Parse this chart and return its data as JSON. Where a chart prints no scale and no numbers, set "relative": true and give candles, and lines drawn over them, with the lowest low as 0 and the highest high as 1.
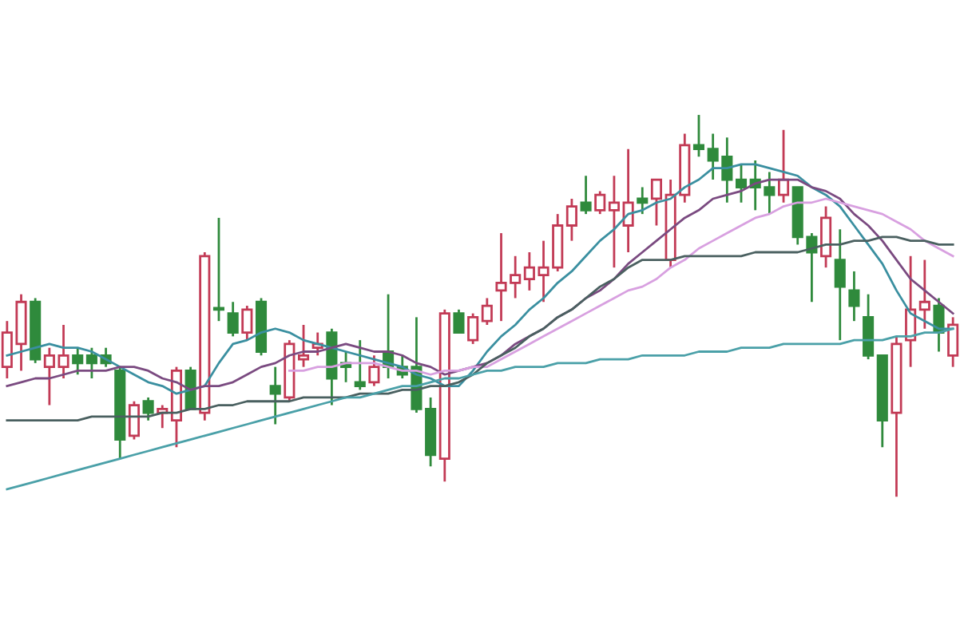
{
  "chart_data": {
    "type": "candlestick",
    "relative": true,
    "categories": [
      null,
      null,
      null,
      null,
      null,
      null,
      null,
      null,
      null,
      null,
      null,
      null,
      null,
      null,
      null,
      null,
      null,
      null,
      null,
      null,
      null,
      null,
      null,
      null,
      null,
      null,
      null,
      null,
      null,
      null,
      null,
      null,
      null,
      null,
      null,
      null,
      null,
      null,
      null,
      null,
      null,
      null,
      null,
      null,
      null,
      null,
      null,
      null,
      null,
      null,
      null,
      null,
      null,
      null,
      null,
      null,
      null,
      null,
      null,
      null,
      null,
      null,
      null,
      null,
      null,
      null,
      null,
      null
    ],
    "ohlc": [
      [
        0.34,
        0.46,
        0.31,
        0.43
      ],
      [
        0.4,
        0.53,
        0.33,
        0.51
      ],
      [
        0.51,
        0.52,
        0.35,
        0.36
      ],
      [
        0.34,
        0.39,
        0.24,
        0.37
      ],
      [
        0.34,
        0.45,
        0.31,
        0.37
      ],
      [
        0.37,
        0.39,
        0.32,
        0.35
      ],
      [
        0.37,
        0.39,
        0.31,
        0.35
      ],
      [
        0.37,
        0.39,
        0.34,
        0.35
      ],
      [
        0.33,
        0.34,
        0.1,
        0.15
      ],
      [
        0.16,
        0.25,
        0.15,
        0.24
      ],
      [
        0.25,
        0.26,
        0.2,
        0.22
      ],
      [
        0.22,
        0.24,
        0.18,
        0.23
      ],
      [
        0.2,
        0.34,
        0.13,
        0.33
      ],
      [
        0.33,
        0.34,
        0.23,
        0.23
      ],
      [
        0.22,
        0.64,
        0.2,
        0.63
      ],
      [
        0.49,
        0.73,
        0.46,
        0.49
      ],
      [
        0.48,
        0.51,
        0.42,
        0.43
      ],
      [
        0.43,
        0.5,
        0.41,
        0.49
      ],
      [
        0.51,
        0.52,
        0.37,
        0.38
      ],
      [
        0.29,
        0.34,
        0.19,
        0.27
      ],
      [
        0.26,
        0.41,
        0.25,
        0.4
      ],
      [
        0.36,
        0.45,
        0.34,
        0.37
      ],
      [
        0.39,
        0.43,
        0.37,
        0.4
      ],
      [
        0.43,
        0.44,
        0.24,
        0.31
      ],
      [
        0.35,
        0.38,
        0.3,
        0.34
      ],
      [
        0.3,
        0.41,
        0.28,
        0.29
      ],
      [
        0.3,
        0.37,
        0.29,
        0.34
      ],
      [
        0.38,
        0.53,
        0.31,
        0.34
      ],
      [
        0.34,
        0.37,
        0.31,
        0.32
      ],
      [
        0.34,
        0.47,
        0.22,
        0.23
      ],
      [
        0.23,
        0.26,
        0.08,
        0.11
      ],
      [
        0.1,
        0.49,
        0.04,
        0.48
      ],
      [
        0.48,
        0.49,
        0.43,
        0.43
      ],
      [
        0.41,
        0.48,
        0.4,
        0.47
      ],
      [
        0.46,
        0.52,
        0.45,
        0.5
      ],
      [
        0.54,
        0.69,
        0.46,
        0.56
      ],
      [
        0.56,
        0.63,
        0.52,
        0.58
      ],
      [
        0.57,
        0.64,
        0.54,
        0.6
      ],
      [
        0.58,
        0.67,
        0.51,
        0.6
      ],
      [
        0.6,
        0.74,
        0.59,
        0.71
      ],
      [
        0.71,
        0.78,
        0.67,
        0.76
      ],
      [
        0.77,
        0.84,
        0.74,
        0.75
      ],
      [
        0.75,
        0.8,
        0.74,
        0.79
      ],
      [
        0.75,
        0.84,
        0.6,
        0.77
      ],
      [
        0.71,
        0.91,
        0.64,
        0.77
      ],
      [
        0.78,
        0.81,
        0.74,
        0.77
      ],
      [
        0.78,
        0.83,
        0.71,
        0.83
      ],
      [
        0.62,
        0.83,
        0.6,
        0.79
      ],
      [
        0.79,
        0.95,
        0.77,
        0.92
      ],
      [
        0.92,
        1.0,
        0.89,
        0.91
      ],
      [
        0.91,
        0.95,
        0.83,
        0.88
      ],
      [
        0.89,
        0.94,
        0.77,
        0.83
      ],
      [
        0.83,
        0.87,
        0.77,
        0.81
      ],
      [
        0.83,
        0.88,
        0.75,
        0.81
      ],
      [
        0.81,
        0.85,
        0.74,
        0.79
      ],
      [
        0.79,
        0.96,
        0.77,
        0.83
      ],
      [
        0.81,
        0.81,
        0.66,
        0.68
      ],
      [
        0.68,
        0.69,
        0.51,
        0.64
      ],
      [
        0.63,
        0.76,
        0.6,
        0.73
      ],
      [
        0.62,
        0.7,
        0.41,
        0.55
      ],
      [
        0.54,
        0.59,
        0.46,
        0.5
      ],
      [
        0.47,
        0.53,
        0.36,
        0.37
      ],
      [
        0.37,
        0.37,
        0.13,
        0.2
      ],
      [
        0.22,
        0.42,
        0.0,
        0.4
      ],
      [
        0.41,
        0.63,
        0.34,
        0.49
      ],
      [
        0.49,
        0.62,
        0.44,
        0.51
      ],
      [
        0.5,
        0.52,
        0.38,
        0.43
      ],
      [
        0.37,
        0.47,
        0.34,
        0.45
      ]
    ],
    "colors": [
      "#c23a55",
      "#c23a55",
      "#2f8a3c",
      "#c23a55",
      "#c23a55",
      "#2f8a3c",
      "#2f8a3c",
      "#2f8a3c",
      "#2f8a3c",
      "#c23a55",
      "#2f8a3c",
      "#c23a55",
      "#c23a55",
      "#2f8a3c",
      "#c23a55",
      "#2f8a3c",
      "#2f8a3c",
      "#c23a55",
      "#2f8a3c",
      "#2f8a3c",
      "#c23a55",
      "#c23a55",
      "#c23a55",
      "#2f8a3c",
      "#2f8a3c",
      "#2f8a3c",
      "#c23a55",
      "#2f8a3c",
      "#2f8a3c",
      "#2f8a3c",
      "#2f8a3c",
      "#c23a55",
      "#2f8a3c",
      "#c23a55",
      "#c23a55",
      "#c23a55",
      "#c23a55",
      "#c23a55",
      "#c23a55",
      "#c23a55",
      "#c23a55",
      "#2f8a3c",
      "#c23a55",
      "#c23a55",
      "#c23a55",
      "#2f8a3c",
      "#c23a55",
      "#c23a55",
      "#c23a55",
      "#2f8a3c",
      "#2f8a3c",
      "#2f8a3c",
      "#2f8a3c",
      "#2f8a3c",
      "#2f8a3c",
      "#c23a55",
      "#2f8a3c",
      "#2f8a3c",
      "#c23a55",
      "#2f8a3c",
      "#2f8a3c",
      "#2f8a3c",
      "#2f8a3c",
      "#c23a55",
      "#c23a55",
      "#c23a55",
      "#2f8a3c",
      "#c23a55"
    ],
    "series": [
      {
        "type": "line",
        "color": "#3a8fa0",
        "values": [
          0.37,
          0.38,
          0.39,
          0.4,
          0.39,
          0.39,
          0.38,
          0.36,
          0.34,
          0.32,
          0.3,
          0.29,
          0.27,
          0.28,
          0.29,
          0.35,
          0.4,
          0.41,
          0.43,
          0.44,
          0.43,
          0.41,
          0.4,
          0.39,
          0.38,
          0.37,
          0.36,
          0.35,
          0.34,
          0.32,
          0.31,
          0.29,
          0.29,
          0.33,
          0.38,
          0.42,
          0.45,
          0.49,
          0.52,
          0.56,
          0.59,
          0.63,
          0.67,
          0.7,
          0.74,
          0.75,
          0.77,
          0.78,
          0.81,
          0.83,
          0.86,
          0.86,
          0.87,
          0.87,
          0.86,
          0.85,
          0.84,
          0.81,
          0.79,
          0.76,
          0.71,
          0.66,
          0.61,
          0.54,
          0.48,
          0.46,
          0.44,
          0.44
        ]
      },
      {
        "type": "line",
        "color": "#7a4a80",
        "values": [
          0.29,
          0.3,
          0.31,
          0.31,
          0.32,
          0.33,
          0.33,
          0.33,
          0.34,
          0.34,
          0.33,
          0.31,
          0.3,
          0.28,
          0.29,
          0.29,
          0.3,
          0.32,
          0.34,
          0.35,
          0.37,
          0.38,
          0.38,
          0.39,
          0.4,
          0.39,
          0.38,
          0.38,
          0.37,
          0.35,
          0.34,
          0.32,
          0.33,
          0.34,
          0.35,
          0.37,
          0.4,
          0.42,
          0.44,
          0.47,
          0.49,
          0.52,
          0.54,
          0.57,
          0.61,
          0.64,
          0.67,
          0.7,
          0.73,
          0.75,
          0.78,
          0.79,
          0.8,
          0.82,
          0.83,
          0.83,
          0.83,
          0.81,
          0.8,
          0.78,
          0.74,
          0.71,
          0.67,
          0.62,
          0.57,
          0.54,
          0.51,
          0.48
        ]
      },
      {
        "type": "line",
        "color": "#d8a0e0",
        "values": [
          null,
          null,
          null,
          null,
          null,
          null,
          null,
          null,
          null,
          null,
          null,
          null,
          null,
          null,
          null,
          null,
          null,
          null,
          null,
          null,
          0.33,
          0.33,
          0.34,
          0.34,
          0.35,
          0.35,
          0.35,
          0.34,
          0.33,
          0.33,
          0.32,
          0.33,
          0.33,
          0.34,
          0.34,
          0.36,
          0.38,
          0.4,
          0.42,
          0.44,
          0.46,
          0.48,
          0.5,
          0.52,
          0.54,
          0.55,
          0.57,
          0.6,
          0.62,
          0.65,
          0.67,
          0.69,
          0.71,
          0.73,
          0.74,
          0.76,
          0.77,
          0.77,
          0.78,
          0.77,
          0.76,
          0.75,
          0.74,
          0.72,
          0.7,
          0.67,
          0.65,
          0.63
        ]
      },
      {
        "type": "line",
        "color": "#4a6060",
        "values": [
          0.2,
          0.2,
          0.2,
          0.2,
          0.2,
          0.2,
          0.21,
          0.21,
          0.21,
          0.21,
          0.21,
          0.22,
          0.22,
          0.23,
          0.23,
          0.24,
          0.24,
          0.25,
          0.25,
          0.25,
          0.25,
          0.26,
          0.26,
          0.26,
          0.26,
          0.27,
          0.27,
          0.27,
          0.28,
          0.28,
          0.29,
          0.29,
          0.3,
          0.32,
          0.35,
          0.37,
          0.39,
          0.42,
          0.44,
          0.47,
          0.49,
          0.52,
          0.55,
          0.57,
          0.6,
          0.62,
          0.62,
          0.62,
          0.63,
          0.63,
          0.63,
          0.63,
          0.63,
          0.64,
          0.64,
          0.64,
          0.64,
          0.65,
          0.66,
          0.66,
          0.67,
          0.67,
          0.68,
          0.68,
          0.67,
          0.67,
          0.66,
          0.66
        ]
      },
      {
        "type": "line",
        "color": "#4aa0a8",
        "values": [
          0.02,
          0.03,
          0.04,
          0.05,
          0.06,
          0.07,
          0.08,
          0.09,
          0.1,
          0.11,
          0.12,
          0.13,
          0.14,
          0.15,
          0.16,
          0.17,
          0.18,
          0.19,
          0.2,
          0.21,
          0.22,
          0.23,
          0.24,
          0.25,
          0.26,
          0.26,
          0.27,
          0.28,
          0.29,
          0.29,
          0.3,
          0.31,
          0.31,
          0.32,
          0.33,
          0.33,
          0.34,
          0.34,
          0.34,
          0.35,
          0.35,
          0.35,
          0.36,
          0.36,
          0.36,
          0.37,
          0.37,
          0.37,
          0.37,
          0.38,
          0.38,
          0.38,
          0.39,
          0.39,
          0.39,
          0.4,
          0.4,
          0.4,
          0.4,
          0.4,
          0.41,
          0.41,
          0.41,
          0.42,
          0.42,
          0.43,
          0.43,
          0.44
        ]
      }
    ]
  }
}
